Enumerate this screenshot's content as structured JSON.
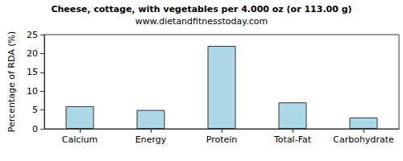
{
  "chart_data": {
    "type": "bar",
    "title": "Cheese, cottage, with vegetables per 4.000 oz (or 113.00 g)",
    "subtitle": "www.dietandfitnesstoday.com",
    "y_label": "Percentage of RDA (%)",
    "categories": [
      "Calcium",
      "Energy",
      "Protein",
      "Total-Fat",
      "Carbohydrate"
    ],
    "values": [
      6,
      5,
      22,
      7,
      3
    ],
    "color": "#add8e6",
    "ylim": [
      0,
      25
    ],
    "yticks": [
      0,
      5,
      10,
      15,
      20,
      25
    ],
    "grid": false
  }
}
